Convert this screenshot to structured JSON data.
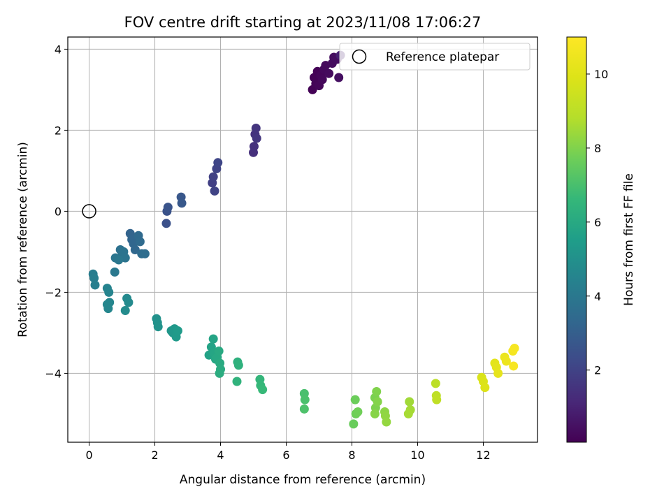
{
  "chart_data": {
    "type": "scatter",
    "title": "FOV centre drift starting at 2023/11/08 17:06:27",
    "xlabel": "Angular distance from reference (arcmin)",
    "ylabel": "Rotation from reference (arcmin)",
    "xlim": [
      -0.65,
      13.65
    ],
    "ylim": [
      -5.7,
      4.3
    ],
    "xticks": [
      0,
      2,
      4,
      6,
      8,
      10,
      12
    ],
    "yticks": [
      -4,
      -2,
      0,
      2,
      4
    ],
    "grid": true,
    "colormap": "viridis",
    "colorbar": {
      "label": "Hours from first FF file",
      "range": [
        0.05,
        11.0
      ],
      "ticks": [
        2,
        4,
        6,
        8,
        10
      ]
    },
    "legend": {
      "placement": "top-right",
      "entries": [
        {
          "label": "Reference platepar",
          "marker": "open-circle"
        }
      ]
    },
    "reference_point": {
      "x": 0,
      "y": 0
    },
    "points": [
      {
        "x": 6.8,
        "y": 3.0,
        "c": 0.1
      },
      {
        "x": 6.85,
        "y": 3.3,
        "c": 0.12
      },
      {
        "x": 6.9,
        "y": 3.15,
        "c": 0.15
      },
      {
        "x": 6.95,
        "y": 3.45,
        "c": 0.1
      },
      {
        "x": 7.0,
        "y": 3.1,
        "c": 0.2
      },
      {
        "x": 7.05,
        "y": 3.35,
        "c": 0.2
      },
      {
        "x": 7.1,
        "y": 3.25,
        "c": 0.25
      },
      {
        "x": 7.15,
        "y": 3.5,
        "c": 0.28
      },
      {
        "x": 7.2,
        "y": 3.6,
        "c": 0.3
      },
      {
        "x": 7.3,
        "y": 3.4,
        "c": 0.32
      },
      {
        "x": 7.4,
        "y": 3.65,
        "c": 0.35
      },
      {
        "x": 7.45,
        "y": 3.8,
        "c": 0.38
      },
      {
        "x": 7.55,
        "y": 3.75,
        "c": 0.4
      },
      {
        "x": 7.6,
        "y": 3.3,
        "c": 0.45
      },
      {
        "x": 7.65,
        "y": 3.85,
        "c": 0.9
      },
      {
        "x": 5.0,
        "y": 1.45,
        "c": 1.4
      },
      {
        "x": 5.02,
        "y": 1.6,
        "c": 1.45
      },
      {
        "x": 5.05,
        "y": 1.9,
        "c": 1.5
      },
      {
        "x": 5.08,
        "y": 2.05,
        "c": 1.55
      },
      {
        "x": 5.1,
        "y": 1.8,
        "c": 1.6
      },
      {
        "x": 3.75,
        "y": 0.7,
        "c": 1.9
      },
      {
        "x": 3.78,
        "y": 0.85,
        "c": 1.95
      },
      {
        "x": 3.82,
        "y": 0.5,
        "c": 2.0
      },
      {
        "x": 3.88,
        "y": 1.05,
        "c": 2.05
      },
      {
        "x": 3.92,
        "y": 1.2,
        "c": 2.1
      },
      {
        "x": 2.35,
        "y": -0.3,
        "c": 2.5
      },
      {
        "x": 2.37,
        "y": 0.0,
        "c": 2.55
      },
      {
        "x": 2.4,
        "y": 0.1,
        "c": 2.6
      },
      {
        "x": 2.8,
        "y": 0.35,
        "c": 2.7
      },
      {
        "x": 2.82,
        "y": 0.2,
        "c": 2.75
      },
      {
        "x": 1.25,
        "y": -0.55,
        "c": 3.2
      },
      {
        "x": 1.3,
        "y": -0.7,
        "c": 3.25
      },
      {
        "x": 1.35,
        "y": -0.8,
        "c": 3.3
      },
      {
        "x": 1.4,
        "y": -0.95,
        "c": 3.35
      },
      {
        "x": 1.5,
        "y": -0.6,
        "c": 3.4
      },
      {
        "x": 1.55,
        "y": -0.75,
        "c": 3.45
      },
      {
        "x": 1.6,
        "y": -1.05,
        "c": 3.5
      },
      {
        "x": 1.7,
        "y": -1.05,
        "c": 3.55
      },
      {
        "x": 0.95,
        "y": -0.95,
        "c": 3.7
      },
      {
        "x": 1.0,
        "y": -1.1,
        "c": 3.75
      },
      {
        "x": 1.05,
        "y": -1.0,
        "c": 3.8
      },
      {
        "x": 1.1,
        "y": -1.15,
        "c": 3.85
      },
      {
        "x": 0.8,
        "y": -1.15,
        "c": 3.9
      },
      {
        "x": 0.9,
        "y": -1.2,
        "c": 3.95
      },
      {
        "x": 0.78,
        "y": -1.5,
        "c": 4.0
      },
      {
        "x": 0.12,
        "y": -1.55,
        "c": 4.2
      },
      {
        "x": 0.15,
        "y": -1.65,
        "c": 4.25
      },
      {
        "x": 0.18,
        "y": -1.82,
        "c": 4.3
      },
      {
        "x": 0.55,
        "y": -1.9,
        "c": 4.45
      },
      {
        "x": 0.6,
        "y": -2.0,
        "c": 4.5
      },
      {
        "x": 0.62,
        "y": -2.25,
        "c": 4.55
      },
      {
        "x": 0.55,
        "y": -2.3,
        "c": 4.58
      },
      {
        "x": 0.58,
        "y": -2.4,
        "c": 4.6
      },
      {
        "x": 1.15,
        "y": -2.15,
        "c": 4.7
      },
      {
        "x": 1.2,
        "y": -2.25,
        "c": 4.75
      },
      {
        "x": 1.1,
        "y": -2.45,
        "c": 4.8
      },
      {
        "x": 2.05,
        "y": -2.65,
        "c": 5.0
      },
      {
        "x": 2.08,
        "y": -2.75,
        "c": 5.05
      },
      {
        "x": 2.1,
        "y": -2.85,
        "c": 5.1
      },
      {
        "x": 2.5,
        "y": -2.95,
        "c": 5.2
      },
      {
        "x": 2.55,
        "y": -3.0,
        "c": 5.25
      },
      {
        "x": 2.6,
        "y": -2.9,
        "c": 5.3
      },
      {
        "x": 2.65,
        "y": -3.1,
        "c": 5.35
      },
      {
        "x": 2.7,
        "y": -2.95,
        "c": 5.4
      },
      {
        "x": 3.65,
        "y": -3.55,
        "c": 5.7
      },
      {
        "x": 3.72,
        "y": -3.35,
        "c": 5.75
      },
      {
        "x": 3.78,
        "y": -3.15,
        "c": 5.8
      },
      {
        "x": 3.8,
        "y": -3.5,
        "c": 5.85
      },
      {
        "x": 3.85,
        "y": -3.65,
        "c": 5.9
      },
      {
        "x": 3.9,
        "y": -3.6,
        "c": 5.95
      },
      {
        "x": 3.95,
        "y": -3.45,
        "c": 6.0
      },
      {
        "x": 3.98,
        "y": -3.75,
        "c": 6.05
      },
      {
        "x": 4.0,
        "y": -3.9,
        "c": 6.1
      },
      {
        "x": 3.97,
        "y": -4.0,
        "c": 6.15
      },
      {
        "x": 4.52,
        "y": -3.72,
        "c": 6.3
      },
      {
        "x": 4.55,
        "y": -3.8,
        "c": 6.35
      },
      {
        "x": 4.5,
        "y": -4.2,
        "c": 6.4
      },
      {
        "x": 5.2,
        "y": -4.15,
        "c": 6.55
      },
      {
        "x": 5.22,
        "y": -4.3,
        "c": 6.6
      },
      {
        "x": 5.28,
        "y": -4.4,
        "c": 6.65
      },
      {
        "x": 6.55,
        "y": -4.5,
        "c": 7.0
      },
      {
        "x": 6.57,
        "y": -4.65,
        "c": 7.05
      },
      {
        "x": 6.55,
        "y": -4.88,
        "c": 7.1
      },
      {
        "x": 8.05,
        "y": -5.25,
        "c": 7.6
      },
      {
        "x": 8.1,
        "y": -4.65,
        "c": 7.65
      },
      {
        "x": 8.12,
        "y": -5.0,
        "c": 7.7
      },
      {
        "x": 8.18,
        "y": -4.95,
        "c": 7.75
      },
      {
        "x": 8.7,
        "y": -4.6,
        "c": 7.9
      },
      {
        "x": 8.72,
        "y": -4.85,
        "c": 7.95
      },
      {
        "x": 8.75,
        "y": -4.45,
        "c": 8.0
      },
      {
        "x": 8.78,
        "y": -4.7,
        "c": 8.05
      },
      {
        "x": 8.7,
        "y": -5.0,
        "c": 8.1
      },
      {
        "x": 9.0,
        "y": -4.95,
        "c": 8.2
      },
      {
        "x": 9.02,
        "y": -5.05,
        "c": 8.25
      },
      {
        "x": 9.05,
        "y": -5.2,
        "c": 8.3
      },
      {
        "x": 9.75,
        "y": -4.7,
        "c": 8.5
      },
      {
        "x": 9.78,
        "y": -4.9,
        "c": 8.55
      },
      {
        "x": 9.72,
        "y": -5.0,
        "c": 8.6
      },
      {
        "x": 10.55,
        "y": -4.25,
        "c": 9.0
      },
      {
        "x": 10.57,
        "y": -4.55,
        "c": 9.05
      },
      {
        "x": 10.58,
        "y": -4.65,
        "c": 9.1
      },
      {
        "x": 11.95,
        "y": -4.1,
        "c": 9.8
      },
      {
        "x": 12.0,
        "y": -4.2,
        "c": 9.85
      },
      {
        "x": 12.05,
        "y": -4.35,
        "c": 9.9
      },
      {
        "x": 12.35,
        "y": -3.75,
        "c": 10.1
      },
      {
        "x": 12.4,
        "y": -3.85,
        "c": 10.15
      },
      {
        "x": 12.45,
        "y": -4.0,
        "c": 10.2
      },
      {
        "x": 12.65,
        "y": -3.6,
        "c": 10.4
      },
      {
        "x": 12.7,
        "y": -3.7,
        "c": 10.45
      },
      {
        "x": 12.9,
        "y": -3.45,
        "c": 10.7
      },
      {
        "x": 12.95,
        "y": -3.38,
        "c": 10.75
      },
      {
        "x": 12.92,
        "y": -3.82,
        "c": 10.8
      }
    ]
  }
}
